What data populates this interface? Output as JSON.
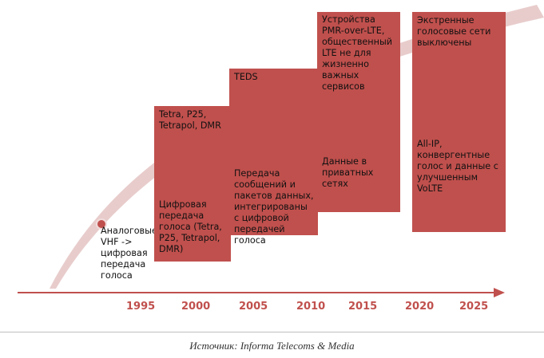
{
  "start": {
    "label": "Аналоговые VHF -> цифровая передача голоса"
  },
  "columns": [
    {
      "top_text": "Tetra, P25, Tetrapol, DMR",
      "bottom_text": "Цифровая передача голоса (Tetra, P25, Tetrapol, DMR)"
    },
    {
      "top_text": "TEDS",
      "bottom_text": "Передача сообщений и пакетов данных, интегрированы с цифровой передачей голоса"
    },
    {
      "top_text": "Устройства PMR-over-LTE, общественный LTE не для жизненно важных сервисов",
      "bottom_text": "Данные в приватных сетях"
    },
    {
      "top_text": "Экстренные голосовые сети выключены",
      "bottom_text": "All-IP, конвергентные голос и данные с улучшенным VoLTE"
    }
  ],
  "timeline": {
    "years": [
      "1995",
      "2000",
      "2005",
      "2010",
      "2015",
      "2020",
      "2025"
    ]
  },
  "source": "Источник:  Informa Telecoms & Media",
  "colors": {
    "accent": "#c0504d",
    "swoosh": "#e8cccc",
    "axis": "#c0504d"
  }
}
